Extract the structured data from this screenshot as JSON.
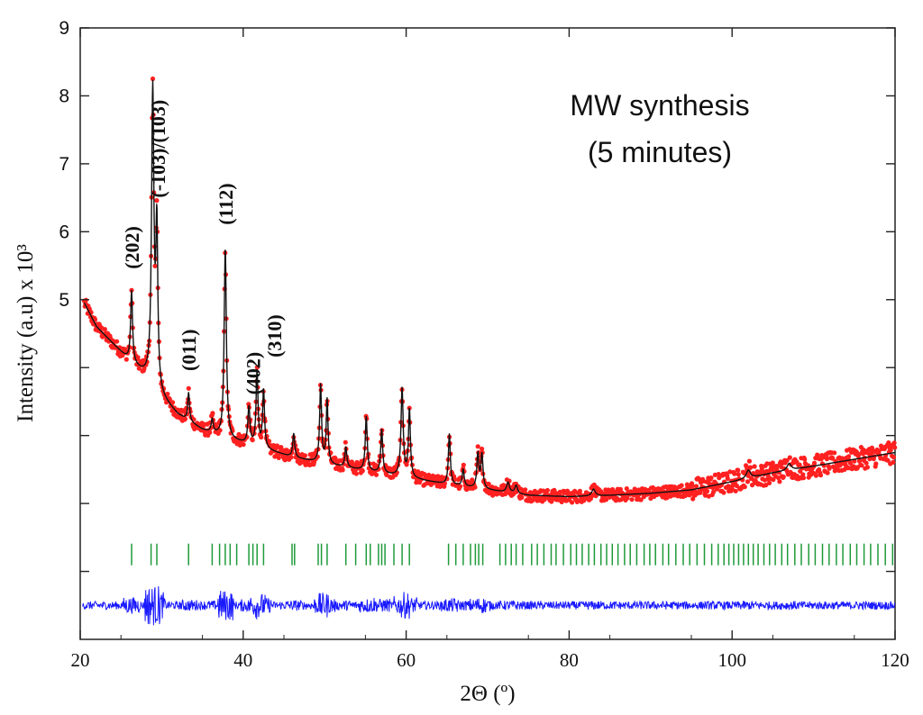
{
  "chart_data": {
    "type": "scatter",
    "title": "",
    "xlabel": "2Θ (º)",
    "ylabel": "Intensity (a.u) x 10³",
    "xlim": [
      20,
      120
    ],
    "ylim": [
      0,
      9
    ],
    "x_ticks": [
      20,
      40,
      60,
      80,
      100,
      120
    ],
    "y_ticks": [
      5,
      6,
      7,
      8,
      9
    ],
    "annotation_lines": [
      "MW synthesis",
      "(5 minutes)"
    ],
    "peak_labels": [
      {
        "text": "(202)",
        "x": 26.3
      },
      {
        "text": "(-103)/(103)",
        "x": 29.5
      },
      {
        "text": "(011)",
        "x": 33.3
      },
      {
        "text": "(112)",
        "x": 37.8
      },
      {
        "text": "(402)",
        "x": 41.2
      },
      {
        "text": "(310)",
        "x": 43.8
      }
    ],
    "baseline": [
      [
        20.5,
        4.95
      ],
      [
        22,
        4.6
      ],
      [
        24,
        4.35
      ],
      [
        26,
        4.1
      ],
      [
        28,
        3.88
      ],
      [
        29,
        3.75
      ],
      [
        30,
        3.55
      ],
      [
        32,
        3.3
      ],
      [
        35,
        3.08
      ],
      [
        38,
        2.95
      ],
      [
        42,
        2.82
      ],
      [
        46,
        2.68
      ],
      [
        50,
        2.58
      ],
      [
        55,
        2.48
      ],
      [
        60,
        2.38
      ],
      [
        65,
        2.28
      ],
      [
        70,
        2.2
      ],
      [
        75,
        2.12
      ],
      [
        80,
        2.1
      ],
      [
        85,
        2.12
      ],
      [
        90,
        2.15
      ],
      [
        95,
        2.2
      ],
      [
        100,
        2.32
      ],
      [
        105,
        2.45
      ],
      [
        110,
        2.55
      ],
      [
        115,
        2.65
      ],
      [
        120,
        2.75
      ]
    ],
    "peaks": [
      {
        "x": 26.3,
        "height": 1.05,
        "width": 0.14
      },
      {
        "x": 28.9,
        "height": 4.3,
        "width": 0.17
      },
      {
        "x": 29.4,
        "height": 2.3,
        "width": 0.14
      },
      {
        "x": 33.3,
        "height": 0.42,
        "width": 0.13
      },
      {
        "x": 36.2,
        "height": 0.2,
        "width": 0.14
      },
      {
        "x": 37.8,
        "height": 2.8,
        "width": 0.16
      },
      {
        "x": 40.7,
        "height": 0.55,
        "width": 0.15
      },
      {
        "x": 41.7,
        "height": 1.1,
        "width": 0.14
      },
      {
        "x": 42.5,
        "height": 0.85,
        "width": 0.14
      },
      {
        "x": 46.2,
        "height": 0.35,
        "width": 0.14
      },
      {
        "x": 49.5,
        "height": 1.15,
        "width": 0.14
      },
      {
        "x": 50.3,
        "height": 0.95,
        "width": 0.13
      },
      {
        "x": 52.6,
        "height": 0.3,
        "width": 0.14
      },
      {
        "x": 55.1,
        "height": 0.8,
        "width": 0.14
      },
      {
        "x": 57.0,
        "height": 0.65,
        "width": 0.14
      },
      {
        "x": 59.5,
        "height": 1.3,
        "width": 0.16
      },
      {
        "x": 60.4,
        "height": 1.0,
        "width": 0.14
      },
      {
        "x": 65.3,
        "height": 0.75,
        "width": 0.14
      },
      {
        "x": 67.0,
        "height": 0.25,
        "width": 0.14
      },
      {
        "x": 68.8,
        "height": 0.5,
        "width": 0.15
      },
      {
        "x": 69.3,
        "height": 0.5,
        "width": 0.15
      },
      {
        "x": 72.5,
        "height": 0.15,
        "width": 0.2
      },
      {
        "x": 73.5,
        "height": 0.12,
        "width": 0.2
      },
      {
        "x": 83.0,
        "height": 0.1,
        "width": 0.25
      },
      {
        "x": 102.0,
        "height": 0.12,
        "width": 0.3
      },
      {
        "x": 107.0,
        "height": 0.1,
        "width": 0.3
      }
    ],
    "bragg_positions": [
      26.3,
      28.7,
      29.4,
      33.3,
      36.2,
      37.1,
      37.8,
      38.4,
      39.2,
      40.7,
      41.2,
      41.7,
      42.5,
      46.0,
      46.3,
      49.2,
      49.6,
      50.3,
      52.6,
      53.8,
      55.1,
      55.6,
      56.6,
      57.0,
      57.4,
      58.5,
      59.5,
      60.4,
      65.2,
      66.1,
      67.0,
      67.9,
      68.5,
      68.9,
      69.4,
      71.5,
      72.2,
      72.9,
      73.5,
      74.3,
      75.4,
      76.1,
      76.9,
      77.8,
      78.4,
      79.3,
      80.2,
      80.9,
      81.6,
      82.4,
      83.1,
      83.9,
      84.6,
      85.3,
      86.0,
      86.8,
      87.5,
      88.3,
      89.2,
      89.9,
      90.6,
      91.5,
      92.2,
      93.1,
      94.0,
      94.8,
      95.7,
      96.6,
      97.5,
      98.3,
      99.0,
      99.6,
      100.2,
      100.8,
      101.4,
      102.0,
      102.6,
      103.2,
      103.9,
      104.6,
      105.3,
      106.1,
      106.8,
      107.7,
      108.5,
      109.4,
      110.2,
      111.1,
      111.9,
      112.8,
      113.6,
      114.5,
      115.3,
      116.2,
      117.0,
      117.9,
      118.8,
      119.7
    ],
    "bragg_level": 1.25,
    "difference_level": 0.5,
    "series": [
      {
        "name": "Observed",
        "color": "#ff2020",
        "style": "points"
      },
      {
        "name": "Calculated",
        "color": "#111111",
        "style": "line"
      },
      {
        "name": "Bragg positions",
        "color": "#1f9a3a",
        "style": "ticks"
      },
      {
        "name": "Difference",
        "color": "#1a1aff",
        "style": "line"
      }
    ]
  }
}
